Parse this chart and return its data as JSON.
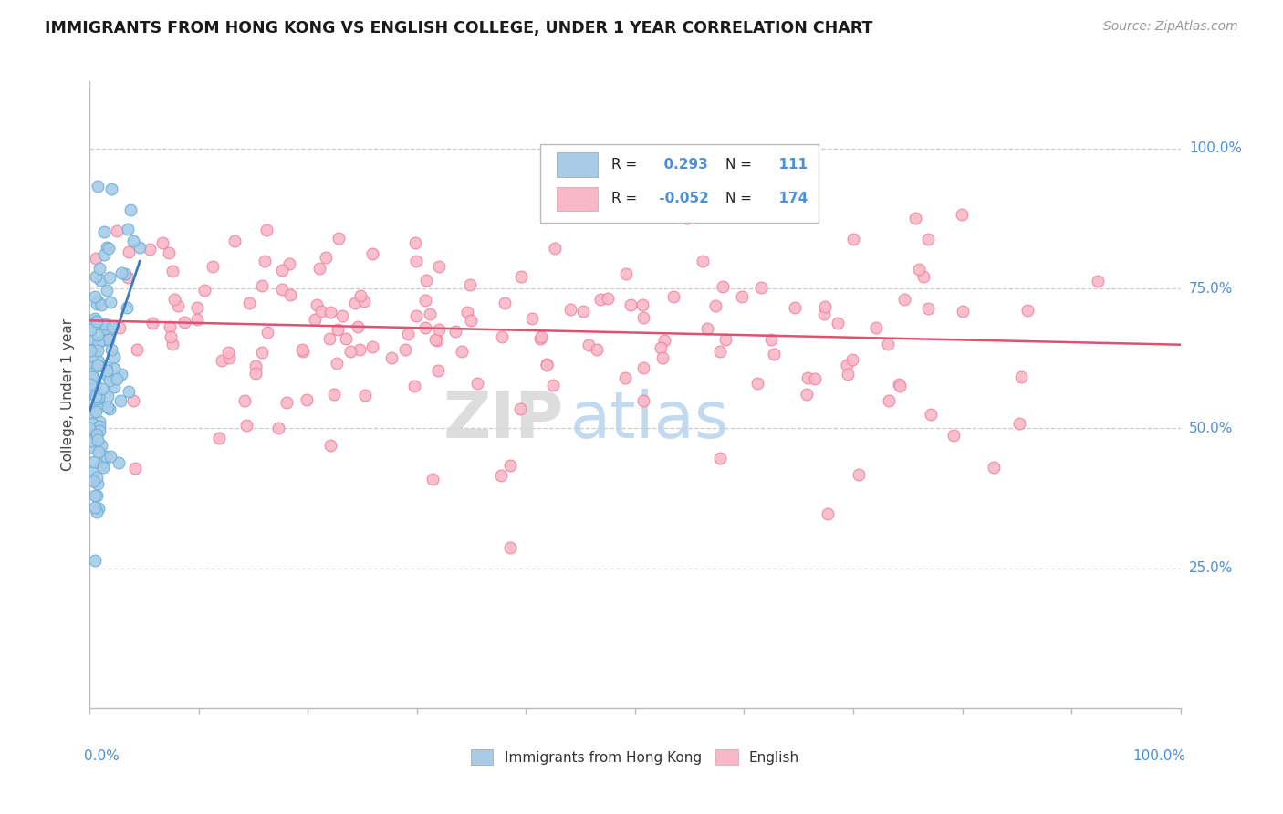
{
  "title": "IMMIGRANTS FROM HONG KONG VS ENGLISH COLLEGE, UNDER 1 YEAR CORRELATION CHART",
  "source": "Source: ZipAtlas.com",
  "ylabel": "College, Under 1 year",
  "legend_blue_label": "Immigrants from Hong Kong",
  "legend_pink_label": "English",
  "R_blue": 0.293,
  "N_blue": 111,
  "R_pink": -0.052,
  "N_pink": 174,
  "blue_color": "#a8cce8",
  "blue_edge_color": "#6aaed6",
  "pink_color": "#f9b8c8",
  "pink_edge_color": "#f080a0",
  "blue_line_color": "#3a7abf",
  "pink_line_color": "#e05070",
  "axis_label_color": "#4a90d9",
  "background_color": "#ffffff",
  "grid_color": "#cccccc",
  "title_fontsize": 12.5,
  "source_fontsize": 10,
  "tick_fontsize": 11,
  "seed": 7
}
